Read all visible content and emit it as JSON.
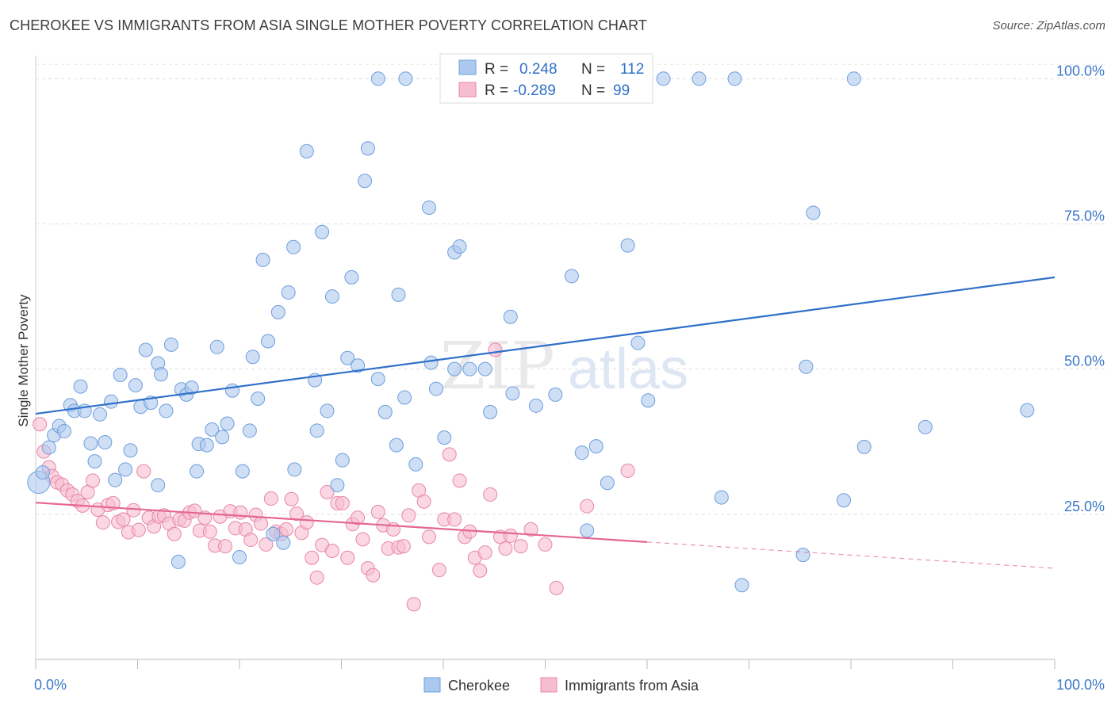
{
  "title": "CHEROKEE VS IMMIGRANTS FROM ASIA SINGLE MOTHER POVERTY CORRELATION CHART",
  "source": "Source: ZipAtlas.com",
  "watermark": "ZIPatlas",
  "chart_data": {
    "type": "scatter",
    "title": "CHEROKEE VS IMMIGRANTS FROM ASIA SINGLE MOTHER POVERTY CORRELATION CHART",
    "xlabel": "",
    "ylabel": "Single Mother Poverty",
    "xlim": [
      0,
      100
    ],
    "ylim": [
      0,
      104
    ],
    "x_tick_labels": [
      "0.0%",
      "100.0%"
    ],
    "y_ticks": [
      25,
      50,
      75,
      100
    ],
    "y_tick_labels": [
      "25.0%",
      "50.0%",
      "75.0%",
      "100.0%"
    ],
    "grid": "horizontal dashed",
    "legend_position": "top-center",
    "colors": {
      "cherokee_fill": "#adc8ef",
      "cherokee_stroke": "#6d9fdc",
      "cherokee_line": "#2f70c9",
      "asia_fill": "#f6bcd0",
      "asia_stroke": "#e886a8",
      "asia_line": "#e5668f",
      "value_text": "#2f70c9",
      "axis_text": "#3b78c9"
    },
    "stats": [
      {
        "r_label": "R =",
        "r_value": "0.248",
        "n_label": "N =",
        "n_value": "112"
      },
      {
        "r_label": "R =",
        "r_value": "-0.289",
        "n_label": "N =",
        "n_value": "99"
      }
    ],
    "series": [
      {
        "name": "Cherokee",
        "trend": {
          "x": [
            0,
            100
          ],
          "y": [
            42.3,
            65.8
          ],
          "solid_to": 100
        },
        "points": [
          [
            0.3,
            30.5
          ],
          [
            0.7,
            32.2
          ],
          [
            1.3,
            36.5
          ],
          [
            1.8,
            38.6
          ],
          [
            2.3,
            40.2
          ],
          [
            2.8,
            39.3
          ],
          [
            3.4,
            43.8
          ],
          [
            3.8,
            42.8
          ],
          [
            4.4,
            47.0
          ],
          [
            4.8,
            42.8
          ],
          [
            5.4,
            37.2
          ],
          [
            5.8,
            34.1
          ],
          [
            6.3,
            42.2
          ],
          [
            6.8,
            37.4
          ],
          [
            7.4,
            44.4
          ],
          [
            7.8,
            30.9
          ],
          [
            8.3,
            49.0
          ],
          [
            8.8,
            32.7
          ],
          [
            9.3,
            36.0
          ],
          [
            9.8,
            47.2
          ],
          [
            10.3,
            43.5
          ],
          [
            10.8,
            53.3
          ],
          [
            11.3,
            44.2
          ],
          [
            12.0,
            51.0
          ],
          [
            12.3,
            49.1
          ],
          [
            12.8,
            42.8
          ],
          [
            13.3,
            54.2
          ],
          [
            14.0,
            16.8
          ],
          [
            14.3,
            46.5
          ],
          [
            14.8,
            45.6
          ],
          [
            15.3,
            46.8
          ],
          [
            16.0,
            37.1
          ],
          [
            15.8,
            32.4
          ],
          [
            16.8,
            36.9
          ],
          [
            17.3,
            39.6
          ],
          [
            17.8,
            53.8
          ],
          [
            18.3,
            38.3
          ],
          [
            18.8,
            40.6
          ],
          [
            19.3,
            46.3
          ],
          [
            20.0,
            17.6
          ],
          [
            20.3,
            32.4
          ],
          [
            21.0,
            39.4
          ],
          [
            21.3,
            52.1
          ],
          [
            21.8,
            44.9
          ],
          [
            22.3,
            68.8
          ],
          [
            22.8,
            54.8
          ],
          [
            23.3,
            21.6
          ],
          [
            23.8,
            59.8
          ],
          [
            24.3,
            20.1
          ],
          [
            24.8,
            63.2
          ],
          [
            25.3,
            71.0
          ],
          [
            25.4,
            32.7
          ],
          [
            26.6,
            87.5
          ],
          [
            27.4,
            48.1
          ],
          [
            27.6,
            39.4
          ],
          [
            28.1,
            73.6
          ],
          [
            28.6,
            42.8
          ],
          [
            29.1,
            62.5
          ],
          [
            29.6,
            30.0
          ],
          [
            30.1,
            34.3
          ],
          [
            30.6,
            51.9
          ],
          [
            31.0,
            65.8
          ],
          [
            31.6,
            50.6
          ],
          [
            32.3,
            82.4
          ],
          [
            32.6,
            88.0
          ],
          [
            33.6,
            100.0
          ],
          [
            33.6,
            48.3
          ],
          [
            34.3,
            42.6
          ],
          [
            35.4,
            36.9
          ],
          [
            35.6,
            62.8
          ],
          [
            36.2,
            45.1
          ],
          [
            36.3,
            100.0
          ],
          [
            37.3,
            33.6
          ],
          [
            38.6,
            77.8
          ],
          [
            38.8,
            51.1
          ],
          [
            39.3,
            46.6
          ],
          [
            40.1,
            38.2
          ],
          [
            41.1,
            70.1
          ],
          [
            41.1,
            50.0
          ],
          [
            41.6,
            71.1
          ],
          [
            42.6,
            50.0
          ],
          [
            44.1,
            50.0
          ],
          [
            44.6,
            42.6
          ],
          [
            46.6,
            59.0
          ],
          [
            46.8,
            45.8
          ],
          [
            47.0,
            100.0
          ],
          [
            49.1,
            43.7
          ],
          [
            51.0,
            45.6
          ],
          [
            51.6,
            100.0
          ],
          [
            52.6,
            66.0
          ],
          [
            53.6,
            35.6
          ],
          [
            54.1,
            22.2
          ],
          [
            55.0,
            36.7
          ],
          [
            56.1,
            30.4
          ],
          [
            58.1,
            71.3
          ],
          [
            59.1,
            54.5
          ],
          [
            60.1,
            44.6
          ],
          [
            61.6,
            100.0
          ],
          [
            65.1,
            100.0
          ],
          [
            67.3,
            27.9
          ],
          [
            68.6,
            100.0
          ],
          [
            69.3,
            12.8
          ],
          [
            75.3,
            18.0
          ],
          [
            75.6,
            50.4
          ],
          [
            76.3,
            76.9
          ],
          [
            79.3,
            27.4
          ],
          [
            80.3,
            100.0
          ],
          [
            81.3,
            36.6
          ],
          [
            87.3,
            40.0
          ],
          [
            97.3,
            42.9
          ],
          [
            12.0,
            30.0
          ],
          [
            56.0,
            100.0
          ]
        ]
      },
      {
        "name": "Immigrants from Asia",
        "trend": {
          "x": [
            0,
            100
          ],
          "y": [
            27.0,
            15.7
          ],
          "solid_to": 60
        },
        "points": [
          [
            0.4,
            40.5
          ],
          [
            0.8,
            35.8
          ],
          [
            1.3,
            33.1
          ],
          [
            1.6,
            31.6
          ],
          [
            2.1,
            30.5
          ],
          [
            2.6,
            30.1
          ],
          [
            3.1,
            29.1
          ],
          [
            3.6,
            28.4
          ],
          [
            4.1,
            27.3
          ],
          [
            4.6,
            26.5
          ],
          [
            5.1,
            28.8
          ],
          [
            5.6,
            30.8
          ],
          [
            6.1,
            25.8
          ],
          [
            6.6,
            23.6
          ],
          [
            7.1,
            26.6
          ],
          [
            7.6,
            26.9
          ],
          [
            8.1,
            23.7
          ],
          [
            8.6,
            24.1
          ],
          [
            9.1,
            21.9
          ],
          [
            9.6,
            25.7
          ],
          [
            10.1,
            22.3
          ],
          [
            10.6,
            32.4
          ],
          [
            11.1,
            24.4
          ],
          [
            11.6,
            22.9
          ],
          [
            12.1,
            24.6
          ],
          [
            12.6,
            24.8
          ],
          [
            13.1,
            23.4
          ],
          [
            13.6,
            21.6
          ],
          [
            14.1,
            24.1
          ],
          [
            14.6,
            23.9
          ],
          [
            15.1,
            25.3
          ],
          [
            15.6,
            25.6
          ],
          [
            16.1,
            22.2
          ],
          [
            16.6,
            24.4
          ],
          [
            17.1,
            22.0
          ],
          [
            17.6,
            19.6
          ],
          [
            18.1,
            24.6
          ],
          [
            18.6,
            19.5
          ],
          [
            19.1,
            25.5
          ],
          [
            19.6,
            22.6
          ],
          [
            20.1,
            25.3
          ],
          [
            20.6,
            22.4
          ],
          [
            21.1,
            20.6
          ],
          [
            21.6,
            24.9
          ],
          [
            22.1,
            23.4
          ],
          [
            22.6,
            19.8
          ],
          [
            23.1,
            27.7
          ],
          [
            23.6,
            22.0
          ],
          [
            24.1,
            21.6
          ],
          [
            24.6,
            22.4
          ],
          [
            25.1,
            27.6
          ],
          [
            25.6,
            25.1
          ],
          [
            26.1,
            21.8
          ],
          [
            26.6,
            23.6
          ],
          [
            27.1,
            17.5
          ],
          [
            27.6,
            14.1
          ],
          [
            28.1,
            19.7
          ],
          [
            28.6,
            28.8
          ],
          [
            29.1,
            18.7
          ],
          [
            29.6,
            26.9
          ],
          [
            30.1,
            26.9
          ],
          [
            30.6,
            17.5
          ],
          [
            31.1,
            23.3
          ],
          [
            31.6,
            24.4
          ],
          [
            32.1,
            20.7
          ],
          [
            32.6,
            15.7
          ],
          [
            33.1,
            14.5
          ],
          [
            33.6,
            25.4
          ],
          [
            34.1,
            23.1
          ],
          [
            34.6,
            19.1
          ],
          [
            35.1,
            22.4
          ],
          [
            35.6,
            19.3
          ],
          [
            36.1,
            19.5
          ],
          [
            36.6,
            24.8
          ],
          [
            37.1,
            9.5
          ],
          [
            37.6,
            29.1
          ],
          [
            38.1,
            27.2
          ],
          [
            38.6,
            21.1
          ],
          [
            39.6,
            15.4
          ],
          [
            40.1,
            24.1
          ],
          [
            40.6,
            35.3
          ],
          [
            41.1,
            24.1
          ],
          [
            41.6,
            30.8
          ],
          [
            42.1,
            21.1
          ],
          [
            42.6,
            22.0
          ],
          [
            43.1,
            17.5
          ],
          [
            43.6,
            15.3
          ],
          [
            44.1,
            18.4
          ],
          [
            44.6,
            28.4
          ],
          [
            45.1,
            53.3
          ],
          [
            45.6,
            21.1
          ],
          [
            46.1,
            19.1
          ],
          [
            46.6,
            21.3
          ],
          [
            47.6,
            19.5
          ],
          [
            48.6,
            22.4
          ],
          [
            50.0,
            19.8
          ],
          [
            51.1,
            12.3
          ],
          [
            54.1,
            26.4
          ],
          [
            58.1,
            32.5
          ]
        ]
      }
    ]
  },
  "legend": {
    "items": [
      "Cherokee",
      "Immigrants from Asia"
    ]
  }
}
